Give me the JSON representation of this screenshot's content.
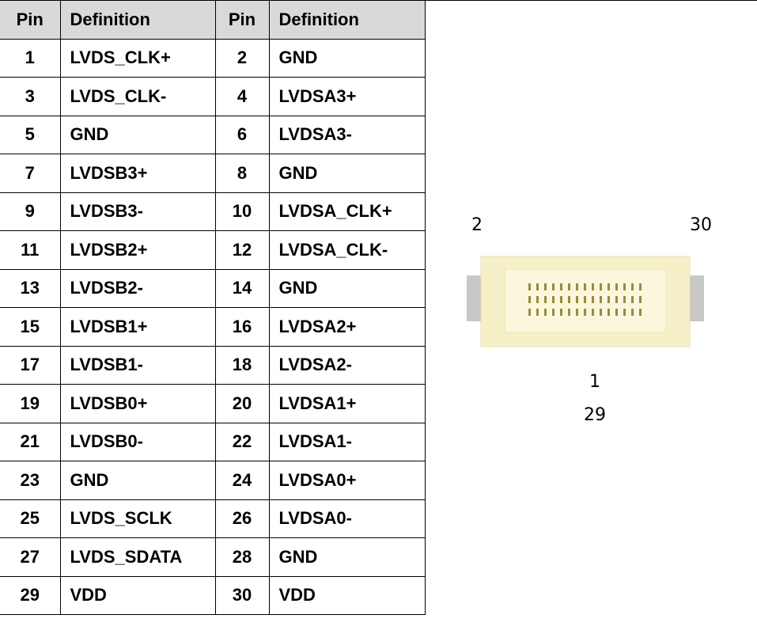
{
  "table": {
    "header": [
      "Pin",
      "Definition",
      "Pin",
      "Definition"
    ],
    "rows": [
      [
        1,
        "LVDS_CLK+",
        2,
        "GND"
      ],
      [
        3,
        "LVDS_CLK-",
        4,
        "LVDSA3+"
      ],
      [
        5,
        "GND",
        6,
        "LVDSA3-"
      ],
      [
        7,
        "LVDSB3+",
        8,
        "GND"
      ],
      [
        9,
        "LVDSB3-",
        10,
        "LVDSA_CLK+"
      ],
      [
        11,
        "LVDSB2+",
        12,
        "LVDSA_CLK-"
      ],
      [
        13,
        "LVDSB2-",
        14,
        "GND"
      ],
      [
        15,
        "LVDSB1+",
        16,
        "LVDSA2+"
      ],
      [
        17,
        "LVDSB1-",
        18,
        "LVDSA2-"
      ],
      [
        19,
        "LVDSB0+",
        20,
        "LVDSA1+"
      ],
      [
        21,
        "LVDSB0-",
        22,
        "LVDSA1-"
      ],
      [
        23,
        "GND",
        24,
        "LVDSA0+"
      ],
      [
        25,
        "LVDS_SCLK",
        26,
        "LVDSA0-"
      ],
      [
        27,
        "LVDS_SDATA",
        28,
        "GND"
      ],
      [
        29,
        "VDD",
        30,
        "VDD"
      ]
    ]
  },
  "diagram": {
    "top_left": "2",
    "top_right": "30",
    "bottom_first": "1",
    "bottom_second": "29"
  }
}
